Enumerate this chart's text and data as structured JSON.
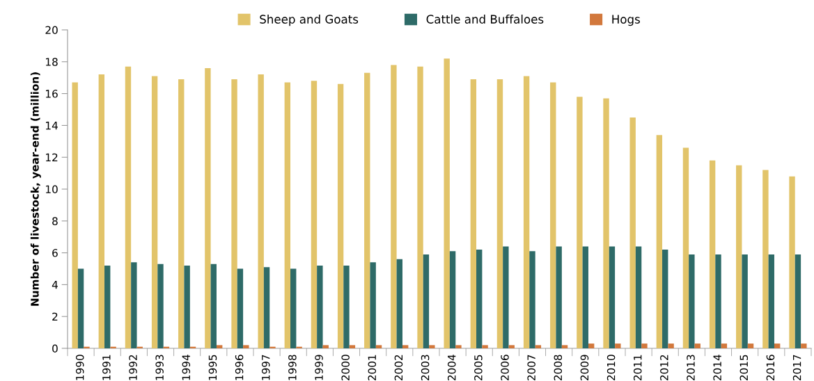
{
  "chart_data": {
    "type": "bar",
    "ylabel": "Number of livestock, year-end (million)",
    "categories": [
      "1990",
      "1991",
      "1992",
      "1993",
      "1994",
      "1995",
      "1996",
      "1997",
      "1998",
      "1999",
      "2000",
      "2001",
      "2002",
      "2003",
      "2004",
      "2005",
      "2006",
      "2007",
      "2008",
      "2009",
      "2010",
      "2011",
      "2012",
      "2013",
      "2014",
      "2015",
      "2016",
      "2017"
    ],
    "series": [
      {
        "name": "Sheep and Goats",
        "color": "#e2c46a",
        "values": [
          16.7,
          17.2,
          17.7,
          17.1,
          16.9,
          17.6,
          16.9,
          17.2,
          16.7,
          16.8,
          16.6,
          17.3,
          17.8,
          17.7,
          18.2,
          16.9,
          16.9,
          17.1,
          16.7,
          15.8,
          15.7,
          14.5,
          13.4,
          12.6,
          11.8,
          11.5,
          11.2,
          10.8
        ]
      },
      {
        "name": "Cattle and Buffaloes",
        "color": "#2e6b68",
        "values": [
          5.0,
          5.2,
          5.4,
          5.3,
          5.2,
          5.3,
          5.0,
          5.1,
          5.0,
          5.2,
          5.2,
          5.4,
          5.6,
          5.9,
          6.1,
          6.2,
          6.4,
          6.1,
          6.4,
          6.4,
          6.4,
          6.4,
          6.2,
          5.9,
          5.9,
          5.9,
          5.9,
          5.9
        ]
      },
      {
        "name": "Hogs",
        "color": "#d2783c",
        "values": [
          0.1,
          0.1,
          0.1,
          0.1,
          0.1,
          0.2,
          0.2,
          0.1,
          0.1,
          0.2,
          0.2,
          0.2,
          0.2,
          0.2,
          0.2,
          0.2,
          0.2,
          0.2,
          0.2,
          0.3,
          0.3,
          0.3,
          0.3,
          0.3,
          0.3,
          0.3,
          0.3,
          0.3
        ]
      }
    ],
    "ylim": [
      0,
      20
    ],
    "yticks": [
      0,
      2,
      4,
      6,
      8,
      10,
      12,
      14,
      16,
      18,
      20
    ],
    "grid": false,
    "legend": "top"
  }
}
